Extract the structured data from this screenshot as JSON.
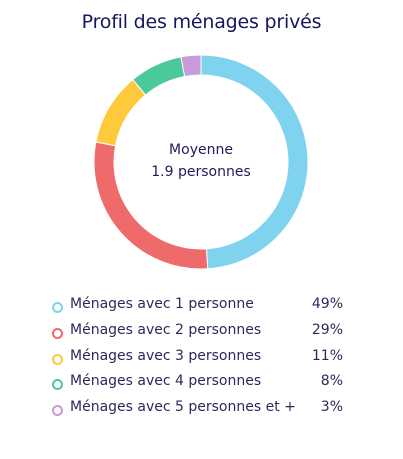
{
  "chart_data": {
    "type": "pie",
    "title": "Profil des ménages privés",
    "center_text": [
      "Moyenne",
      "1.9 personnes"
    ],
    "legend_position": "bottom",
    "categories": [
      "Ménages avec 1 personne",
      "Ménages avec 2 personnes",
      "Ménages avec 3 personnes",
      "Ménages avec 4 personnes",
      "Ménages avec 5 personnes et +"
    ],
    "values": [
      49,
      29,
      11,
      8,
      3
    ],
    "value_labels": [
      "49%",
      "29%",
      "11%",
      "8%",
      "3%"
    ],
    "colors": [
      "#7fd3ee",
      "#ef6b6b",
      "#ffc93c",
      "#4bc99a",
      "#c89ad8"
    ]
  }
}
